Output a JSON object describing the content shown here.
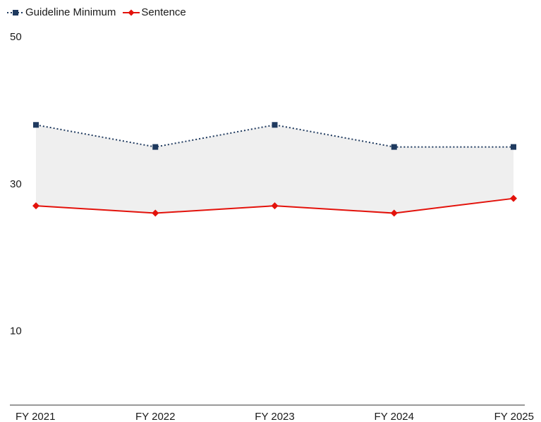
{
  "chart_data": {
    "type": "line",
    "title": "",
    "xlabel": "",
    "ylabel": "",
    "categories": [
      "FY 2021",
      "FY 2022",
      "FY 2023",
      "FY 2024",
      "FY 2025"
    ],
    "ylim": [
      0,
      50
    ],
    "yticks": [
      10,
      30,
      50
    ],
    "grid": false,
    "legend_position": "top-left",
    "shaded_between_series": true,
    "series": [
      {
        "name": "Guideline Minimum",
        "values": [
          38,
          35,
          38,
          35,
          35
        ],
        "color": "#1f3a5f",
        "line_style": "dotted",
        "marker": "square"
      },
      {
        "name": "Sentence",
        "values": [
          27,
          26,
          27,
          26,
          28
        ],
        "color": "#e3120b",
        "line_style": "solid",
        "marker": "diamond"
      }
    ],
    "fill_color": "#efefef"
  }
}
